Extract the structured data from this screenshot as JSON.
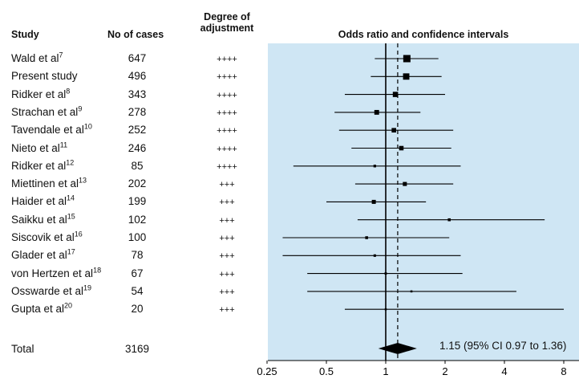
{
  "headers": {
    "study": "Study",
    "cases": "No of cases",
    "adjustment_line1": "Degree of",
    "adjustment_line2": "adjustment",
    "or": "Odds ratio and confidence intervals"
  },
  "colors": {
    "panel": "#cfe6f4",
    "ink": "#000000"
  },
  "chart_data": {
    "type": "forest",
    "x_scale": "log",
    "xlim": [
      0.25,
      8
    ],
    "x_ticks": [
      "0.25",
      "0.5",
      "1",
      "2",
      "4",
      "8"
    ],
    "x_tick_values": [
      0.25,
      0.5,
      1,
      2,
      4,
      8
    ],
    "null_line": 1,
    "pooled_line": 1.15,
    "studies": [
      {
        "name": "Wald et al",
        "ref": "7",
        "cases": "647",
        "adjustment": "++++",
        "or": 1.28,
        "lo": 0.88,
        "hi": 1.85
      },
      {
        "name": "Present study",
        "ref": "",
        "cases": "496",
        "adjustment": "++++",
        "or": 1.27,
        "lo": 0.84,
        "hi": 1.92
      },
      {
        "name": "Ridker et al",
        "ref": "8",
        "cases": "343",
        "adjustment": "++++",
        "or": 1.12,
        "lo": 0.62,
        "hi": 2.0
      },
      {
        "name": "Strachan et al",
        "ref": "9",
        "cases": "278",
        "adjustment": "++++",
        "or": 0.9,
        "lo": 0.55,
        "hi": 1.5
      },
      {
        "name": "Tavendale et al",
        "ref": "10",
        "cases": "252",
        "adjustment": "++++",
        "or": 1.1,
        "lo": 0.58,
        "hi": 2.2
      },
      {
        "name": "Nieto et al",
        "ref": "11",
        "cases": "246",
        "adjustment": "++++",
        "or": 1.2,
        "lo": 0.67,
        "hi": 2.15
      },
      {
        "name": "Ridker et al",
        "ref": "12",
        "cases": "85",
        "adjustment": "++++",
        "or": 0.88,
        "lo": 0.34,
        "hi": 2.4
      },
      {
        "name": "Miettinen et al",
        "ref": "13",
        "cases": "202",
        "adjustment": "+++",
        "or": 1.25,
        "lo": 0.7,
        "hi": 2.2
      },
      {
        "name": "Haider et al",
        "ref": "14",
        "cases": "199",
        "adjustment": "+++",
        "or": 0.87,
        "lo": 0.5,
        "hi": 1.6
      },
      {
        "name": "Saikku et al",
        "ref": "15",
        "cases": "102",
        "adjustment": "+++",
        "or": 2.1,
        "lo": 0.72,
        "hi": 6.4
      },
      {
        "name": "Siscovik et al",
        "ref": "16",
        "cases": "100",
        "adjustment": "+++",
        "or": 0.8,
        "lo": 0.3,
        "hi": 2.1
      },
      {
        "name": "Glader et al",
        "ref": "17",
        "cases": "78",
        "adjustment": "+++",
        "or": 0.88,
        "lo": 0.3,
        "hi": 2.4
      },
      {
        "name": "von Hertzen et al",
        "ref": "18",
        "cases": "67",
        "adjustment": "+++",
        "or": 1.0,
        "lo": 0.4,
        "hi": 2.45
      },
      {
        "name": "Osswarde et al",
        "ref": "19",
        "cases": "54",
        "adjustment": "+++",
        "or": 1.35,
        "lo": 0.4,
        "hi": 4.6
      },
      {
        "name": "Gupta et al",
        "ref": "20",
        "cases": "20",
        "adjustment": "+++",
        "or": 1.0,
        "lo": 0.62,
        "hi": 8.0
      }
    ],
    "total": {
      "label": "Total",
      "cases": "3169",
      "or": 1.15,
      "lo": 0.97,
      "hi": 1.36,
      "ci_text": "1.15 (95% CI 0.97 to 1.36)"
    }
  }
}
